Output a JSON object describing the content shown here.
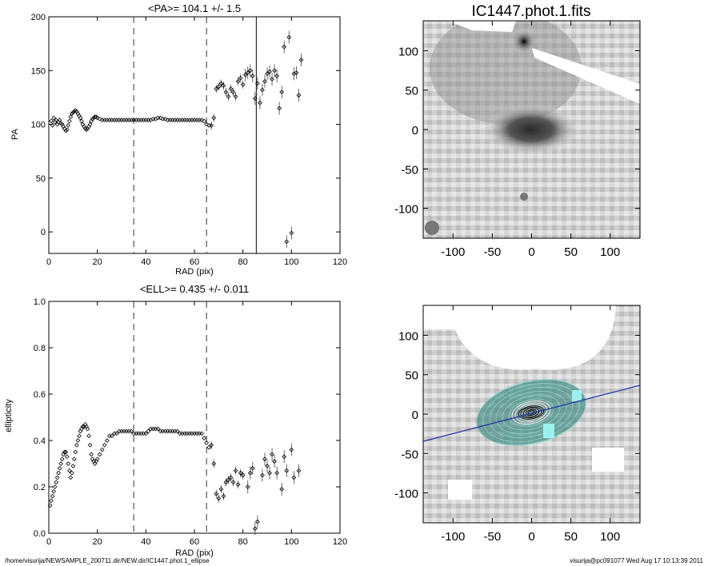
{
  "footer": {
    "path": "/home/visurija/NEWSAMPLE_200711.dir/NEW.dir/IC1447.phot.1_ellipse",
    "stamp": "visurija@pc091077  Wed Aug 17 10:13:39 2011"
  },
  "chart_data": [
    {
      "type": "scatter",
      "id": "pa",
      "title": "<PA>= 104.1 +/-   1.5",
      "xlabel": "RAD (pix)",
      "ylabel": "PA",
      "xlim": [
        0,
        120
      ],
      "ylim": [
        -20,
        200
      ],
      "xticks": [
        0,
        20,
        40,
        60,
        80,
        100,
        120
      ],
      "yticks": [
        0,
        50,
        100,
        150,
        200
      ],
      "vlines_dashed": [
        35,
        65
      ],
      "vlines_solid": [
        85.5
      ],
      "points": [
        [
          1,
          103
        ],
        [
          1.5,
          99
        ],
        [
          2,
          106
        ],
        [
          2.5,
          102
        ],
        [
          3,
          104
        ],
        [
          3.5,
          100
        ],
        [
          4,
          102
        ],
        [
          4.5,
          104
        ],
        [
          5,
          101
        ],
        [
          5.5,
          100
        ],
        [
          6,
          98
        ],
        [
          6.5,
          96
        ],
        [
          7,
          94
        ],
        [
          7.5,
          95
        ],
        [
          8,
          99
        ],
        [
          8.5,
          103
        ],
        [
          9,
          107
        ],
        [
          9.5,
          110
        ],
        [
          10,
          111
        ],
        [
          10.5,
          112
        ],
        [
          11,
          113
        ],
        [
          11.5,
          112
        ],
        [
          12,
          110
        ],
        [
          12.5,
          108
        ],
        [
          13,
          106
        ],
        [
          13.5,
          103
        ],
        [
          14,
          100
        ],
        [
          14.5,
          98
        ],
        [
          15,
          96
        ],
        [
          15.5,
          95
        ],
        [
          16,
          96
        ],
        [
          16.5,
          98
        ],
        [
          17,
          100
        ],
        [
          17.5,
          103
        ],
        [
          18,
          105
        ],
        [
          18.5,
          106
        ],
        [
          19,
          107
        ],
        [
          19.5,
          107
        ],
        [
          20,
          106
        ],
        [
          21,
          105
        ],
        [
          22,
          104
        ],
        [
          23,
          104
        ],
        [
          24,
          104
        ],
        [
          25,
          104
        ],
        [
          26,
          104
        ],
        [
          27,
          104
        ],
        [
          28,
          104
        ],
        [
          29,
          104
        ],
        [
          30,
          104
        ],
        [
          31,
          104
        ],
        [
          32,
          104
        ],
        [
          33,
          104
        ],
        [
          34,
          104
        ],
        [
          35,
          104
        ],
        [
          36,
          104
        ],
        [
          37,
          104
        ],
        [
          38,
          104
        ],
        [
          39,
          104
        ],
        [
          40,
          104
        ],
        [
          41,
          104
        ],
        [
          42,
          104
        ],
        [
          43,
          105
        ],
        [
          44,
          105
        ],
        [
          45,
          106
        ],
        [
          46,
          106
        ],
        [
          47,
          105
        ],
        [
          48,
          105
        ],
        [
          49,
          104
        ],
        [
          50,
          104
        ],
        [
          51,
          104
        ],
        [
          52,
          104
        ],
        [
          53,
          104
        ],
        [
          54,
          104
        ],
        [
          55,
          104
        ],
        [
          56,
          104
        ],
        [
          57,
          104
        ],
        [
          58,
          104
        ],
        [
          59,
          104
        ],
        [
          60,
          104
        ],
        [
          61,
          104
        ],
        [
          62,
          104
        ],
        [
          63,
          104
        ],
        [
          64,
          103
        ],
        [
          65,
          100
        ],
        [
          66,
          99
        ],
        [
          67,
          99
        ],
        [
          68,
          106
        ],
        [
          69,
          133
        ],
        [
          70,
          135
        ],
        [
          71,
          138
        ],
        [
          72,
          136
        ],
        [
          73,
          130
        ],
        [
          74,
          126
        ],
        [
          75,
          133
        ],
        [
          76,
          130
        ],
        [
          77,
          126
        ],
        [
          78,
          140
        ],
        [
          79,
          143
        ],
        [
          80,
          137
        ],
        [
          81,
          146
        ],
        [
          82,
          148
        ],
        [
          83,
          150
        ],
        [
          84,
          145
        ],
        [
          85,
          124
        ],
        [
          86,
          138
        ],
        [
          87,
          120
        ],
        [
          88,
          132
        ],
        [
          89,
          140
        ],
        [
          90,
          147
        ],
        [
          91,
          149
        ],
        [
          92,
          142
        ],
        [
          93,
          150
        ],
        [
          94,
          145
        ],
        [
          95,
          115
        ],
        [
          96,
          130
        ],
        [
          97,
          172
        ],
        [
          98,
          -9
        ],
        [
          99,
          181
        ],
        [
          100,
          -1
        ],
        [
          101,
          147
        ],
        [
          102,
          148
        ],
        [
          103,
          127
        ],
        [
          104,
          160
        ]
      ]
    },
    {
      "type": "scatter",
      "id": "ell",
      "title": "<ELL>= 0.435 +/-  0.011",
      "xlabel": "RAD (pix)",
      "ylabel": "ellipticity",
      "xlim": [
        0,
        120
      ],
      "ylim": [
        0,
        1
      ],
      "xticks": [
        0,
        20,
        40,
        60,
        80,
        100,
        120
      ],
      "yticks": [
        0.0,
        0.2,
        0.4,
        0.6,
        0.8,
        1.0
      ],
      "ytick_labels": [
        "0.0",
        "0.2",
        "0.4",
        "0.6",
        "0.8",
        "1.0"
      ],
      "vlines_dashed": [
        35,
        65
      ],
      "points": [
        [
          0.5,
          0.12
        ],
        [
          1,
          0.14
        ],
        [
          1.5,
          0.16
        ],
        [
          2,
          0.18
        ],
        [
          2.5,
          0.2
        ],
        [
          3,
          0.22
        ],
        [
          3.5,
          0.24
        ],
        [
          4,
          0.26
        ],
        [
          4.5,
          0.28
        ],
        [
          5,
          0.3
        ],
        [
          5.5,
          0.32
        ],
        [
          6,
          0.34
        ],
        [
          6.5,
          0.35
        ],
        [
          7,
          0.35
        ],
        [
          7.5,
          0.33
        ],
        [
          8,
          0.3
        ],
        [
          8.5,
          0.27
        ],
        [
          9,
          0.24
        ],
        [
          9.5,
          0.26
        ],
        [
          10,
          0.29
        ],
        [
          10.5,
          0.32
        ],
        [
          11,
          0.35
        ],
        [
          11.5,
          0.38
        ],
        [
          12,
          0.4
        ],
        [
          12.5,
          0.42
        ],
        [
          13,
          0.44
        ],
        [
          13.5,
          0.45
        ],
        [
          14,
          0.46
        ],
        [
          14.5,
          0.46
        ],
        [
          15,
          0.47
        ],
        [
          15.5,
          0.46
        ],
        [
          16,
          0.45
        ],
        [
          16.5,
          0.42
        ],
        [
          17,
          0.38
        ],
        [
          17.5,
          0.34
        ],
        [
          18,
          0.32
        ],
        [
          18.5,
          0.31
        ],
        [
          19,
          0.3
        ],
        [
          19.5,
          0.31
        ],
        [
          20,
          0.32
        ],
        [
          21,
          0.34
        ],
        [
          22,
          0.36
        ],
        [
          23,
          0.38
        ],
        [
          24,
          0.4
        ],
        [
          25,
          0.42
        ],
        [
          26,
          0.42
        ],
        [
          27,
          0.43
        ],
        [
          28,
          0.43
        ],
        [
          29,
          0.44
        ],
        [
          30,
          0.44
        ],
        [
          31,
          0.44
        ],
        [
          32,
          0.44
        ],
        [
          33,
          0.44
        ],
        [
          34,
          0.44
        ],
        [
          35,
          0.43
        ],
        [
          36,
          0.43
        ],
        [
          37,
          0.43
        ],
        [
          38,
          0.43
        ],
        [
          39,
          0.43
        ],
        [
          40,
          0.43
        ],
        [
          41,
          0.44
        ],
        [
          42,
          0.45
        ],
        [
          43,
          0.45
        ],
        [
          44,
          0.45
        ],
        [
          45,
          0.45
        ],
        [
          46,
          0.44
        ],
        [
          47,
          0.44
        ],
        [
          48,
          0.44
        ],
        [
          49,
          0.44
        ],
        [
          50,
          0.44
        ],
        [
          51,
          0.44
        ],
        [
          52,
          0.44
        ],
        [
          53,
          0.44
        ],
        [
          54,
          0.43
        ],
        [
          55,
          0.43
        ],
        [
          56,
          0.43
        ],
        [
          57,
          0.43
        ],
        [
          58,
          0.43
        ],
        [
          59,
          0.43
        ],
        [
          60,
          0.43
        ],
        [
          61,
          0.43
        ],
        [
          62,
          0.43
        ],
        [
          63,
          0.43
        ],
        [
          64,
          0.41
        ],
        [
          65,
          0.39
        ],
        [
          66,
          0.37
        ],
        [
          67,
          0.38
        ],
        [
          68,
          0.3
        ],
        [
          69,
          0.17
        ],
        [
          70,
          0.15
        ],
        [
          71,
          0.19
        ],
        [
          72,
          0.16
        ],
        [
          73,
          0.22
        ],
        [
          74,
          0.23
        ],
        [
          75,
          0.24
        ],
        [
          76,
          0.22
        ],
        [
          77,
          0.27
        ],
        [
          78,
          0.21
        ],
        [
          79,
          0.26
        ],
        [
          80,
          0.25
        ],
        [
          82,
          0.2
        ],
        [
          83,
          0.26
        ],
        [
          84,
          0.28
        ],
        [
          85,
          0.02
        ],
        [
          86,
          0.05
        ],
        [
          88,
          0.25
        ],
        [
          89,
          0.32
        ],
        [
          90,
          0.29
        ],
        [
          91,
          0.26
        ],
        [
          92,
          0.34
        ],
        [
          93,
          0.31
        ],
        [
          94,
          0.26
        ],
        [
          96,
          0.19
        ],
        [
          97,
          0.33
        ],
        [
          98,
          0.27
        ],
        [
          100,
          0.36
        ],
        [
          101,
          0.24
        ],
        [
          103,
          0.27
        ]
      ]
    }
  ],
  "images": [
    {
      "title": "IC1447.phot.1.fits",
      "xticks": [
        "-100",
        "-50",
        "0",
        "50",
        "100"
      ],
      "yticks": [
        "100",
        "50",
        "0",
        "-50",
        "-100"
      ]
    },
    {
      "title": "",
      "xticks": [
        "-100",
        "-50",
        "0",
        "50",
        "100"
      ],
      "yticks": [
        "100",
        "50",
        "0",
        "-50",
        "-100"
      ]
    }
  ]
}
